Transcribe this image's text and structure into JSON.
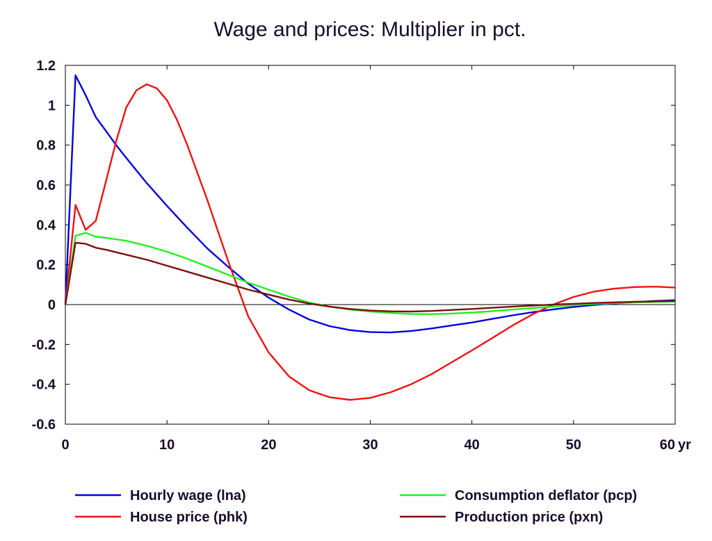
{
  "chart_data": {
    "type": "line",
    "title": "Wage and prices: Multiplier in pct.",
    "xlabel": "",
    "ylabel": "",
    "x_unit": "yr",
    "xlim": [
      0,
      60
    ],
    "ylim": [
      -0.6,
      1.2
    ],
    "xticks": [
      0,
      10,
      20,
      30,
      40,
      50,
      60
    ],
    "yticks": [
      1.2,
      1,
      0.8,
      0.6,
      0.4,
      0.2,
      0,
      -0.2,
      -0.4,
      -0.6
    ],
    "ytick_labels": [
      "1.2",
      "1",
      "0.8",
      "0.6",
      "0.4",
      "0.2",
      "0",
      "-0.2",
      "-0.4",
      "-0.6"
    ],
    "grid": false,
    "legend_position": "bottom",
    "series": [
      {
        "name": "Hourly wage (lna)",
        "color": "#0000dd",
        "points": [
          [
            0,
            0
          ],
          [
            1,
            1.15
          ],
          [
            2,
            1.05
          ],
          [
            3,
            0.94
          ],
          [
            4,
            0.87
          ],
          [
            5,
            0.8
          ],
          [
            6,
            0.735
          ],
          [
            8,
            0.61
          ],
          [
            10,
            0.495
          ],
          [
            12,
            0.385
          ],
          [
            14,
            0.28
          ],
          [
            16,
            0.19
          ],
          [
            18,
            0.105
          ],
          [
            20,
            0.035
          ],
          [
            22,
            -0.025
          ],
          [
            24,
            -0.075
          ],
          [
            26,
            -0.108
          ],
          [
            28,
            -0.128
          ],
          [
            30,
            -0.138
          ],
          [
            32,
            -0.14
          ],
          [
            34,
            -0.133
          ],
          [
            36,
            -0.12
          ],
          [
            38,
            -0.105
          ],
          [
            40,
            -0.09
          ],
          [
            42,
            -0.072
          ],
          [
            44,
            -0.054
          ],
          [
            46,
            -0.038
          ],
          [
            48,
            -0.024
          ],
          [
            50,
            -0.012
          ],
          [
            52,
            -0.002
          ],
          [
            54,
            0.006
          ],
          [
            56,
            0.012
          ],
          [
            58,
            0.018
          ],
          [
            60,
            0.022
          ]
        ]
      },
      {
        "name": "House price (phk)",
        "color": "#ee1111",
        "points": [
          [
            0,
            0
          ],
          [
            1,
            0.5
          ],
          [
            2,
            0.375
          ],
          [
            3,
            0.42
          ],
          [
            4,
            0.62
          ],
          [
            5,
            0.82
          ],
          [
            6,
            0.99
          ],
          [
            7,
            1.075
          ],
          [
            8,
            1.105
          ],
          [
            9,
            1.085
          ],
          [
            10,
            1.025
          ],
          [
            11,
            0.925
          ],
          [
            12,
            0.8
          ],
          [
            14,
            0.52
          ],
          [
            16,
            0.22
          ],
          [
            18,
            -0.06
          ],
          [
            20,
            -0.24
          ],
          [
            22,
            -0.36
          ],
          [
            24,
            -0.43
          ],
          [
            26,
            -0.465
          ],
          [
            28,
            -0.478
          ],
          [
            30,
            -0.468
          ],
          [
            32,
            -0.44
          ],
          [
            34,
            -0.4
          ],
          [
            36,
            -0.35
          ],
          [
            38,
            -0.29
          ],
          [
            40,
            -0.23
          ],
          [
            42,
            -0.168
          ],
          [
            44,
            -0.105
          ],
          [
            46,
            -0.048
          ],
          [
            48,
            0.0
          ],
          [
            50,
            0.038
          ],
          [
            52,
            0.065
          ],
          [
            54,
            0.08
          ],
          [
            56,
            0.088
          ],
          [
            58,
            0.09
          ],
          [
            60,
            0.085
          ]
        ]
      },
      {
        "name": "Consumption deflator (pcp)",
        "color": "#22ee22",
        "points": [
          [
            0,
            0
          ],
          [
            1,
            0.345
          ],
          [
            2,
            0.36
          ],
          [
            3,
            0.34
          ],
          [
            4,
            0.335
          ],
          [
            6,
            0.32
          ],
          [
            8,
            0.295
          ],
          [
            10,
            0.265
          ],
          [
            12,
            0.23
          ],
          [
            14,
            0.19
          ],
          [
            16,
            0.15
          ],
          [
            18,
            0.11
          ],
          [
            20,
            0.075
          ],
          [
            22,
            0.04
          ],
          [
            24,
            0.01
          ],
          [
            26,
            -0.01
          ],
          [
            28,
            -0.025
          ],
          [
            30,
            -0.035
          ],
          [
            32,
            -0.042
          ],
          [
            34,
            -0.047
          ],
          [
            36,
            -0.048
          ],
          [
            38,
            -0.045
          ],
          [
            40,
            -0.04
          ],
          [
            42,
            -0.033
          ],
          [
            44,
            -0.025
          ],
          [
            46,
            -0.017
          ],
          [
            48,
            -0.01
          ],
          [
            50,
            -0.003
          ],
          [
            52,
            0.003
          ],
          [
            54,
            0.007
          ],
          [
            56,
            0.011
          ],
          [
            58,
            0.013
          ],
          [
            60,
            0.015
          ]
        ]
      },
      {
        "name": "Production price (pxn)",
        "color": "#7a0f0f",
        "points": [
          [
            0,
            0
          ],
          [
            1,
            0.31
          ],
          [
            2,
            0.305
          ],
          [
            3,
            0.285
          ],
          [
            4,
            0.275
          ],
          [
            6,
            0.25
          ],
          [
            8,
            0.225
          ],
          [
            10,
            0.195
          ],
          [
            12,
            0.165
          ],
          [
            14,
            0.135
          ],
          [
            16,
            0.105
          ],
          [
            18,
            0.075
          ],
          [
            20,
            0.05
          ],
          [
            22,
            0.025
          ],
          [
            24,
            0.005
          ],
          [
            26,
            -0.01
          ],
          [
            28,
            -0.022
          ],
          [
            30,
            -0.03
          ],
          [
            32,
            -0.034
          ],
          [
            34,
            -0.035
          ],
          [
            36,
            -0.032
          ],
          [
            38,
            -0.027
          ],
          [
            40,
            -0.022
          ],
          [
            42,
            -0.016
          ],
          [
            44,
            -0.01
          ],
          [
            46,
            -0.005
          ],
          [
            48,
            0.0
          ],
          [
            50,
            0.004
          ],
          [
            52,
            0.008
          ],
          [
            54,
            0.011
          ],
          [
            56,
            0.014
          ],
          [
            58,
            0.016
          ],
          [
            60,
            0.018
          ]
        ]
      }
    ]
  }
}
